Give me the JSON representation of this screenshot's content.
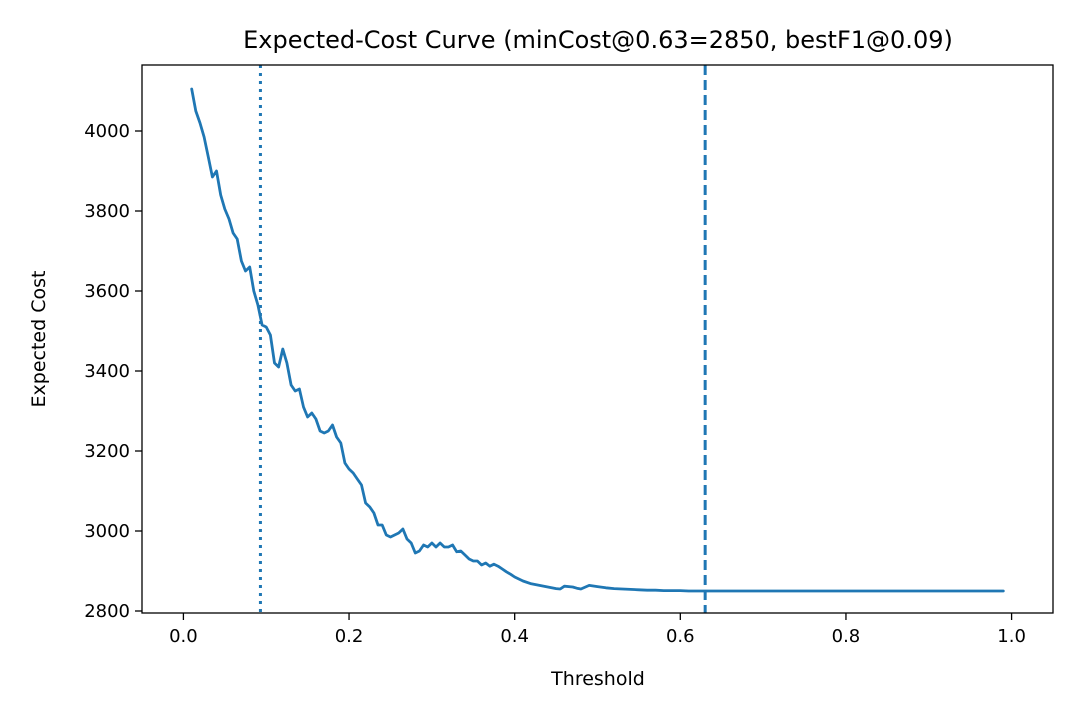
{
  "chart_data": {
    "type": "line",
    "title": "Expected-Cost Curve  (minCost@0.63=2850, bestF1@0.09)",
    "xlabel": "Threshold",
    "ylabel": "Expected Cost",
    "xlim": [
      -0.05,
      1.05
    ],
    "ylim": [
      2795,
      4165
    ],
    "x_ticks": [
      0.0,
      0.2,
      0.4,
      0.6,
      0.8,
      1.0
    ],
    "x_tick_labels": [
      "0.0",
      "0.2",
      "0.4",
      "0.6",
      "0.8",
      "1.0"
    ],
    "y_ticks": [
      2800,
      3000,
      3200,
      3400,
      3600,
      3800,
      4000
    ],
    "y_tick_labels": [
      "2800",
      "3000",
      "3200",
      "3400",
      "3600",
      "3800",
      "4000"
    ],
    "grid": false,
    "colors": {
      "series": "#1f77b4",
      "best_f1_line": "#1f77b4",
      "min_cost_line": "#1f77b4"
    },
    "reference_lines": [
      {
        "orientation": "vertical",
        "x": 0.093,
        "style": "dotted"
      },
      {
        "orientation": "vertical",
        "x": 0.63,
        "style": "dashed"
      }
    ],
    "series": [
      {
        "x": [
          0.01,
          0.015,
          0.02,
          0.025,
          0.03,
          0.035,
          0.04,
          0.045,
          0.05,
          0.055,
          0.06,
          0.065,
          0.07,
          0.075,
          0.08,
          0.085,
          0.09,
          0.095,
          0.1,
          0.105,
          0.11,
          0.115,
          0.12,
          0.125,
          0.13,
          0.135,
          0.14,
          0.145,
          0.15,
          0.155,
          0.16,
          0.165,
          0.17,
          0.175,
          0.18,
          0.185,
          0.19,
          0.195,
          0.2,
          0.205,
          0.21,
          0.215,
          0.22,
          0.225,
          0.23,
          0.235,
          0.24,
          0.245,
          0.25,
          0.255,
          0.26,
          0.265,
          0.27,
          0.275,
          0.28,
          0.285,
          0.29,
          0.295,
          0.3,
          0.305,
          0.31,
          0.315,
          0.32,
          0.325,
          0.33,
          0.335,
          0.34,
          0.345,
          0.35,
          0.355,
          0.36,
          0.365,
          0.37,
          0.375,
          0.38,
          0.385,
          0.39,
          0.395,
          0.4,
          0.41,
          0.42,
          0.43,
          0.44,
          0.45,
          0.455,
          0.46,
          0.47,
          0.475,
          0.48,
          0.49,
          0.5,
          0.51,
          0.52,
          0.53,
          0.54,
          0.55,
          0.56,
          0.57,
          0.58,
          0.59,
          0.6,
          0.61,
          0.62,
          0.63,
          0.65,
          0.7,
          0.75,
          0.8,
          0.85,
          0.9,
          0.95,
          0.99
        ],
        "y": [
          4105,
          4050,
          4020,
          3985,
          3935,
          3885,
          3900,
          3840,
          3805,
          3780,
          3745,
          3730,
          3675,
          3650,
          3660,
          3600,
          3565,
          3515,
          3510,
          3490,
          3420,
          3410,
          3455,
          3420,
          3365,
          3350,
          3355,
          3310,
          3285,
          3295,
          3280,
          3250,
          3245,
          3250,
          3265,
          3235,
          3220,
          3170,
          3155,
          3145,
          3130,
          3115,
          3070,
          3060,
          3045,
          3015,
          3015,
          2990,
          2985,
          2990,
          2995,
          3005,
          2980,
          2970,
          2945,
          2950,
          2965,
          2960,
          2970,
          2960,
          2970,
          2960,
          2960,
          2965,
          2948,
          2950,
          2940,
          2930,
          2925,
          2925,
          2915,
          2920,
          2912,
          2917,
          2912,
          2905,
          2898,
          2892,
          2885,
          2875,
          2868,
          2864,
          2860,
          2856,
          2855,
          2862,
          2860,
          2857,
          2855,
          2864,
          2861,
          2858,
          2856,
          2855,
          2854,
          2853,
          2852,
          2852,
          2851,
          2851,
          2851,
          2850,
          2850,
          2850,
          2850,
          2850,
          2850,
          2850,
          2850,
          2850,
          2850,
          2850
        ]
      }
    ]
  }
}
